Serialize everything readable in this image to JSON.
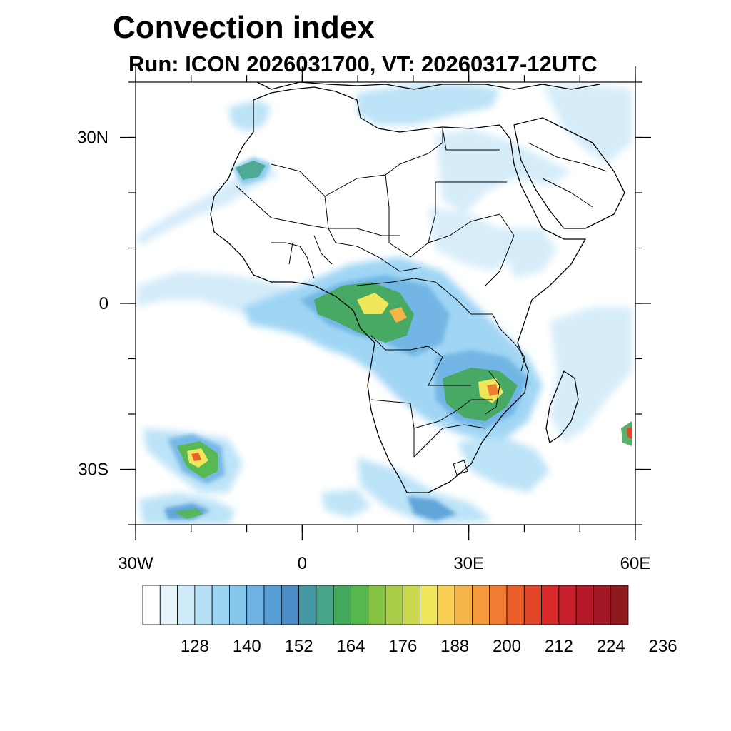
{
  "title": "Convection index",
  "subtitle": "Run: ICON 2026031700,  VT: 20260317-12UTC",
  "axes": {
    "y_ticks": [
      {
        "label": "30N",
        "lat": 30
      },
      {
        "label": "0",
        "lat": 0
      },
      {
        "label": "30S",
        "lat": -30
      }
    ],
    "x_ticks": [
      {
        "label": "30W",
        "lon": -30
      },
      {
        "label": "0",
        "lon": 0
      },
      {
        "label": "30E",
        "lon": 30
      },
      {
        "label": "60E",
        "lon": 60
      }
    ],
    "lon_range": [
      -30,
      60
    ],
    "lat_range": [
      -40,
      40
    ]
  },
  "colorbar": {
    "colors": [
      "#ffffff",
      "#e6f5fc",
      "#cfeaf8",
      "#b5e0f6",
      "#9bd4f3",
      "#85c6ec",
      "#6eb3e3",
      "#579ed6",
      "#4a8cc6",
      "#4596a3",
      "#47a68a",
      "#45a95c",
      "#56b74c",
      "#86c242",
      "#a9cd48",
      "#cbd94c",
      "#efe65a",
      "#f8cf52",
      "#f6b548",
      "#f59a3c",
      "#f17c32",
      "#ec5f2b",
      "#e34529",
      "#d92a2a",
      "#c71f2b",
      "#b4192a",
      "#a21826",
      "#8e1a1e"
    ],
    "labels": [
      "128",
      "140",
      "152",
      "164",
      "176",
      "188",
      "200",
      "212",
      "224",
      "236"
    ]
  }
}
